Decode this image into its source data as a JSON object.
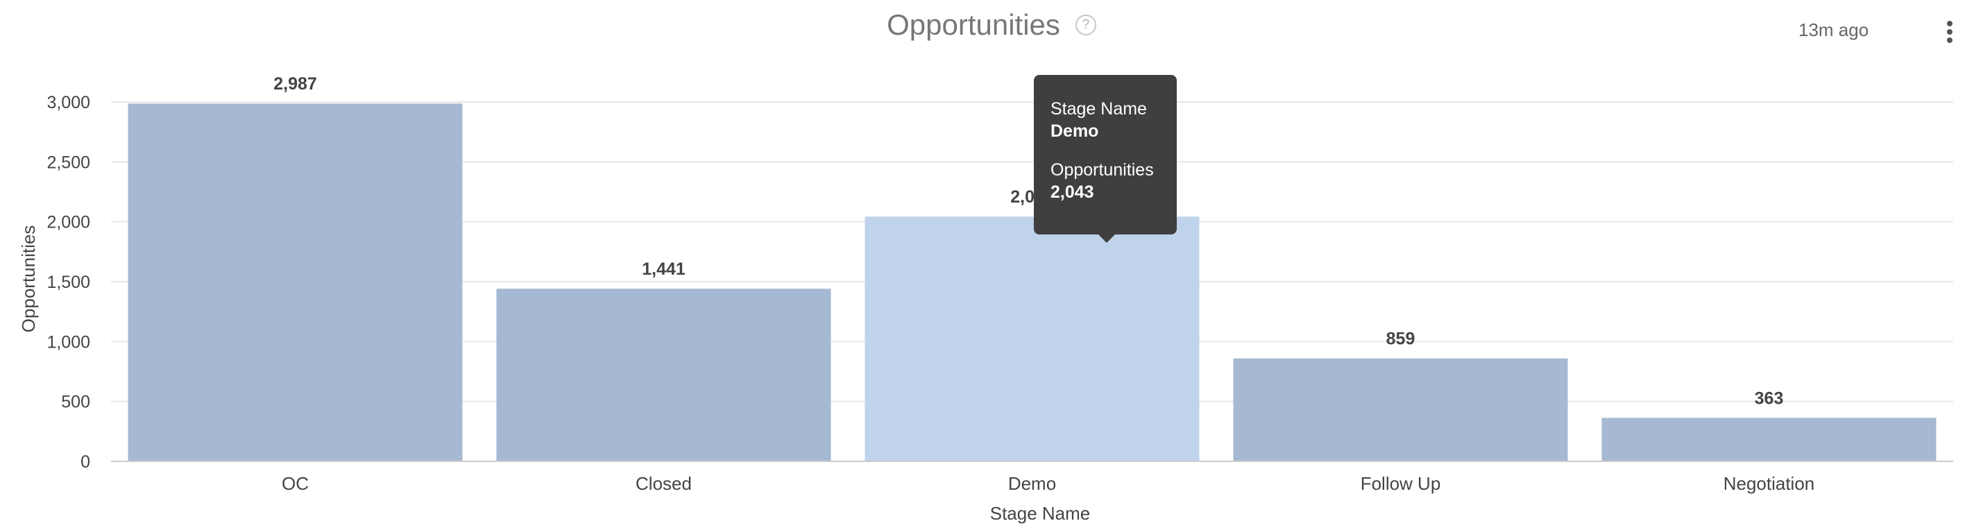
{
  "header": {
    "title": "Opportunities",
    "help_glyph": "?",
    "timestamp": "13m ago"
  },
  "icons": {
    "help": "help-circle-icon",
    "menu": "more-vertical-icon"
  },
  "colors": {
    "bar": "#a6b9d3",
    "bar_hover": "#bfd3eb",
    "tooltip_bg": "#3f3f3f"
  },
  "tooltip": {
    "label1": "Stage Name",
    "value1": "Demo",
    "label2": "Opportunities",
    "value2": "2,043"
  },
  "chart_data": {
    "type": "bar",
    "categories": [
      "OC",
      "Closed",
      "Demo",
      "Follow Up",
      "Negotiation"
    ],
    "values": [
      2987,
      1441,
      2043,
      859,
      363
    ],
    "data_labels": [
      "2,987",
      "1,441",
      "2,043",
      "859",
      "363"
    ],
    "title": "Opportunities",
    "xlabel": "Stage Name",
    "ylabel": "Opportunities",
    "ylim": [
      0,
      3000
    ],
    "yticks": [
      0,
      500,
      1000,
      1500,
      2000,
      2500,
      3000
    ],
    "ytick_labels": [
      "0",
      "500",
      "1,000",
      "1,500",
      "2,000",
      "2,500",
      "3,000"
    ],
    "grid": true,
    "legend": "none",
    "highlighted_category": "Demo"
  }
}
